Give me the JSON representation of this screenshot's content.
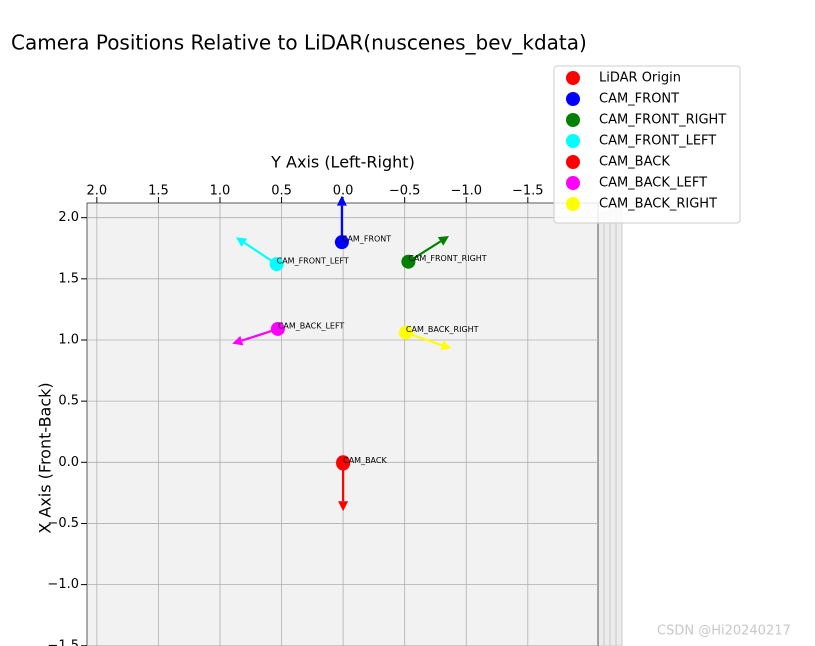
{
  "chart_data": {
    "type": "scatter",
    "title": "Camera Positions Relative to LiDAR(nuscenes_bev_kdata)",
    "x_label": "Y Axis (Left-Right)",
    "y_label": "X Axis (Front-Back)",
    "watermark": "CSDN @Hi20240217",
    "xlim": [
      2.08,
      -2.07
    ],
    "ylim": [
      -1.6,
      2.12
    ],
    "xticks": [
      {
        "value": 2,
        "label": "2.0"
      },
      {
        "value": 1.5,
        "label": "1.5"
      },
      {
        "value": 1,
        "label": "1.0"
      },
      {
        "value": 0.5,
        "label": "0.5"
      },
      {
        "value": 0,
        "label": "0.0"
      },
      {
        "value": -0.5,
        "label": "−0.5"
      },
      {
        "value": -1,
        "label": "−1.0"
      },
      {
        "value": -1.5,
        "label": "−1.5"
      }
    ],
    "yticks": [
      {
        "value": 2,
        "label": "2.0"
      },
      {
        "value": 1.5,
        "label": "1.5"
      },
      {
        "value": 1,
        "label": "1.0"
      },
      {
        "value": 0.5,
        "label": "0.5"
      },
      {
        "value": 0,
        "label": "0.0"
      },
      {
        "value": -0.5,
        "label": "−0.5"
      },
      {
        "value": -1,
        "label": "−1.0"
      },
      {
        "value": -1.5,
        "label": "−1.5"
      }
    ],
    "grid": true,
    "legend": "upper right",
    "series": [
      {
        "name": "LiDAR Origin",
        "color": "#ff0000",
        "x": [
          0
        ],
        "values": [
          0
        ]
      },
      {
        "name": "CAM_FRONT",
        "color": "#0000ff",
        "x": [
          0.01
        ],
        "values": [
          1.8
        ],
        "arrow": [
          0,
          0.38
        ]
      },
      {
        "name": "CAM_FRONT_RIGHT",
        "color": "#008000",
        "x": [
          -0.53
        ],
        "values": [
          1.64
        ],
        "arrow": [
          -0.33,
          0.21
        ]
      },
      {
        "name": "CAM_FRONT_LEFT",
        "color": "#00ffff",
        "x": [
          0.54
        ],
        "values": [
          1.62
        ],
        "arrow": [
          0.33,
          0.22
        ]
      },
      {
        "name": "CAM_BACK",
        "color": "#ff0000",
        "x": [
          0
        ],
        "values": [
          -0.01
        ],
        "arrow": [
          0,
          -0.39
        ]
      },
      {
        "name": "CAM_BACK_LEFT",
        "color": "#ff00ff",
        "x": [
          0.53
        ],
        "values": [
          1.09
        ],
        "arrow": [
          0.37,
          -0.12
        ]
      },
      {
        "name": "CAM_BACK_RIGHT",
        "color": "#ffff00",
        "x": [
          -0.51
        ],
        "values": [
          1.06
        ],
        "arrow": [
          -0.37,
          -0.13
        ]
      }
    ]
  }
}
